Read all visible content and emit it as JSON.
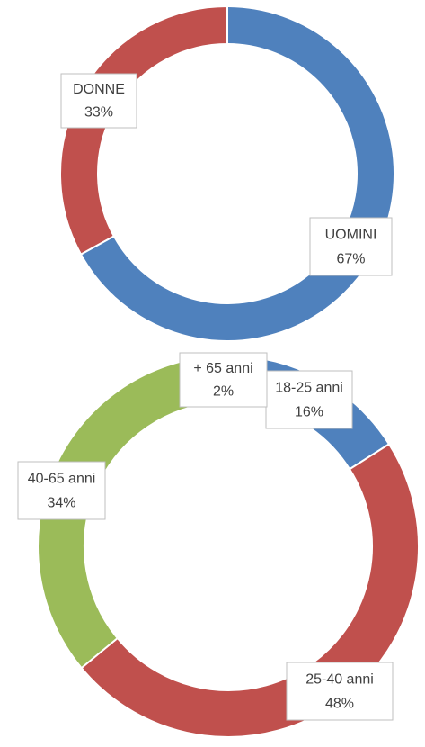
{
  "chart_data": [
    {
      "type": "donut",
      "categories": [
        "UOMINI",
        "DONNE"
      ],
      "values": [
        67,
        33
      ],
      "value_labels": [
        "67%",
        "33%"
      ],
      "colors": [
        "#4f81bd",
        "#c0504d"
      ]
    },
    {
      "type": "donut",
      "categories": [
        "18-25 anni",
        "25-40 anni",
        "40-65 anni",
        "+ 65 anni"
      ],
      "values": [
        16,
        48,
        34,
        2
      ],
      "value_labels": [
        "16%",
        "48%",
        "34%",
        "2%"
      ],
      "colors": [
        "#4f81bd",
        "#c0504d",
        "#9bbb59",
        "#8064a2"
      ]
    }
  ]
}
